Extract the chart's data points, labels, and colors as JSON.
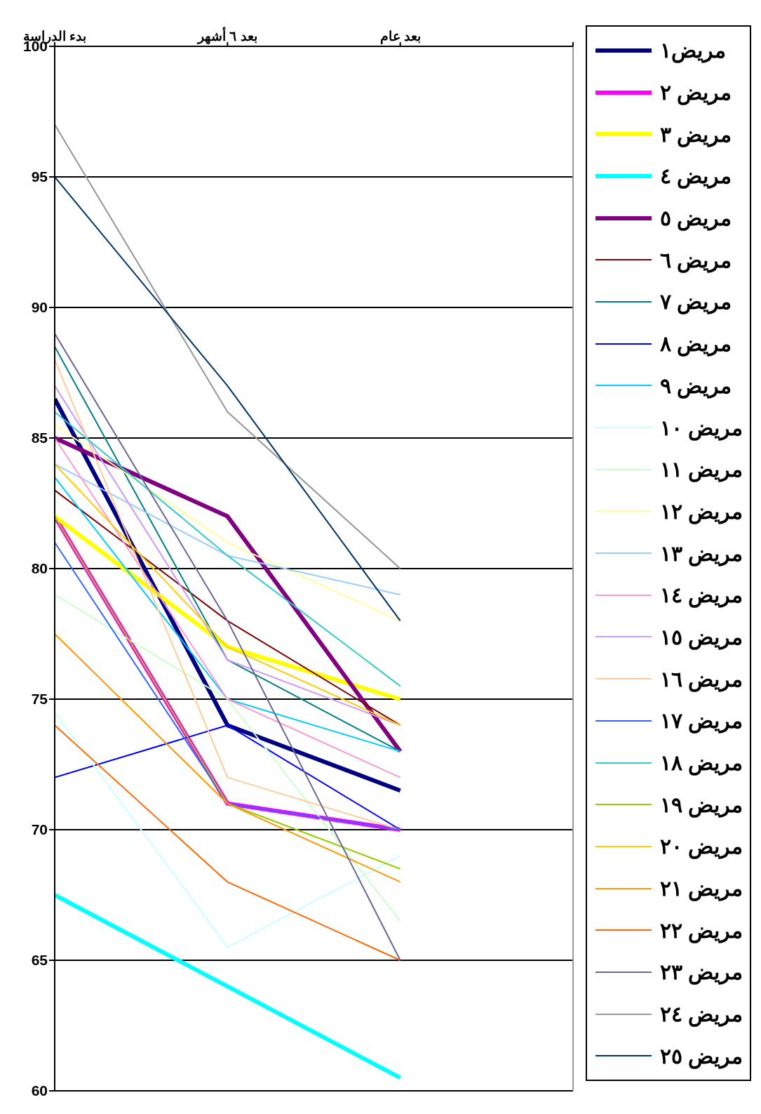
{
  "chart_data": {
    "type": "line",
    "categories": [
      "بدء الدراسة",
      "بعد ٦ أشهر",
      "بعد عام",
      null
    ],
    "ylim": [
      60,
      100
    ],
    "yticks": [
      60,
      65,
      70,
      75,
      80,
      85,
      90,
      95,
      100
    ],
    "grid": "y",
    "legend": "right",
    "marker": "none",
    "line_style": "solid",
    "series": [
      {
        "name": "مريض١",
        "color": "#000080",
        "values": [
          86.5,
          74,
          71.5,
          null
        ]
      },
      {
        "name": "مريض ٢",
        "color": "#ff00ff",
        "values": [
          82,
          71,
          70,
          null
        ]
      },
      {
        "name": "مريض ٣",
        "color": "#ffff00",
        "values": [
          82,
          77,
          75,
          null
        ]
      },
      {
        "name": "مريض ٤",
        "color": "#00ffff",
        "values": [
          67.5,
          64,
          60.5,
          null
        ]
      },
      {
        "name": "مريض ٥",
        "color": "#800080",
        "values": [
          85,
          82,
          73,
          null
        ]
      },
      {
        "name": "مريض ٦",
        "color": "#800000",
        "values": [
          83,
          78,
          74,
          null
        ]
      },
      {
        "name": "مريض ٧",
        "color": "#008080",
        "values": [
          88.5,
          76.5,
          73,
          null
        ]
      },
      {
        "name": "مريض ٨",
        "color": "#0000ff",
        "values": [
          72,
          74,
          70,
          null
        ]
      },
      {
        "name": "مريض ٩",
        "color": "#00ccff",
        "values": [
          83.5,
          75,
          73,
          null
        ]
      },
      {
        "name": "مريض ١٠",
        "color": "#ccffff",
        "values": [
          74.5,
          65.5,
          69,
          null
        ]
      },
      {
        "name": "مريض ١١",
        "color": "#ccffcc",
        "values": [
          79,
          75,
          66.5,
          null
        ]
      },
      {
        "name": "مريض ١٢",
        "color": "#ffff99",
        "values": [
          85.5,
          81,
          78,
          null
        ]
      },
      {
        "name": "مريض ١٣",
        "color": "#99ccff",
        "values": [
          84,
          80.5,
          79,
          null
        ]
      },
      {
        "name": "مريض ١٤",
        "color": "#ff99cc",
        "values": [
          85,
          75,
          72,
          null
        ]
      },
      {
        "name": "مريض ١٥",
        "color": "#cc99ff",
        "values": [
          87,
          76.5,
          74,
          null
        ]
      },
      {
        "name": "مريض ١٦",
        "color": "#ffcc99",
        "values": [
          88,
          72,
          70,
          null
        ]
      },
      {
        "name": "مريض ١٧",
        "color": "#3366ff",
        "values": [
          81,
          71,
          70,
          null
        ]
      },
      {
        "name": "مريض ١٨",
        "color": "#33cccc",
        "values": [
          86,
          80.5,
          75.5,
          null
        ]
      },
      {
        "name": "مريض ١٩",
        "color": "#99cc00",
        "values": [
          82,
          71,
          68.5,
          null
        ]
      },
      {
        "name": "مريض ٢٠",
        "color": "#ffcc00",
        "values": [
          84,
          77,
          74,
          null
        ]
      },
      {
        "name": "مريض ٢١",
        "color": "#ff9900",
        "values": [
          77.5,
          71,
          68,
          null
        ]
      },
      {
        "name": "مريض ٢٢",
        "color": "#ff6600",
        "values": [
          74,
          68,
          65,
          null
        ]
      },
      {
        "name": "مريض ٢٣",
        "color": "#666699",
        "values": [
          89,
          78,
          65,
          null
        ]
      },
      {
        "name": "مريض ٢٤",
        "color": "#969696",
        "values": [
          97,
          86,
          80,
          null
        ]
      },
      {
        "name": "مريض ٢٥",
        "color": "#003366",
        "values": [
          95,
          87,
          78,
          null
        ]
      }
    ]
  }
}
